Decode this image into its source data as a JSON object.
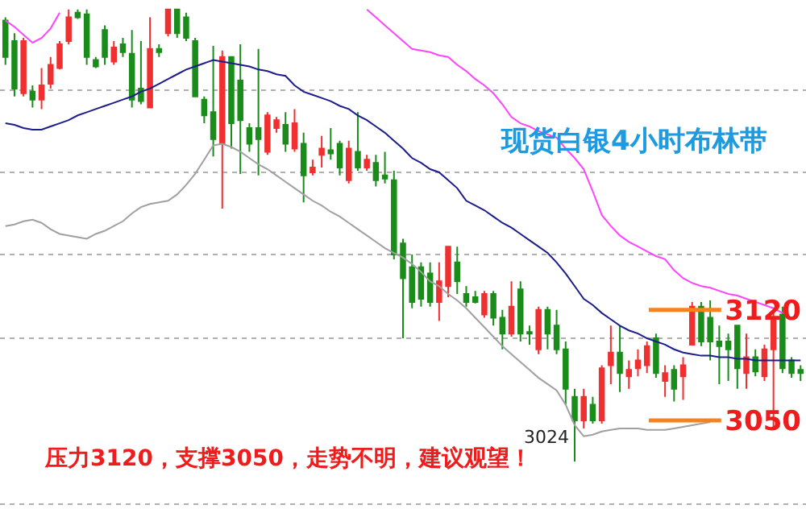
{
  "chart_data": {
    "type": "candlestick",
    "title": "现货白银4小时布林带",
    "categories": [
      null,
      null,
      null,
      null,
      null,
      null,
      null,
      null,
      null,
      null,
      null,
      null,
      null,
      null,
      null,
      null,
      null,
      null,
      null,
      null,
      null,
      null,
      null,
      null,
      null,
      null,
      null,
      null,
      null,
      null,
      null,
      null,
      null,
      null,
      null,
      null,
      null,
      null,
      null,
      null,
      null,
      null,
      null,
      null,
      null,
      null,
      null,
      null,
      null,
      null,
      null,
      null,
      null,
      null,
      null,
      null,
      null,
      null,
      null,
      null,
      null,
      null,
      null,
      null,
      null,
      null,
      null,
      null,
      null,
      null,
      null,
      null,
      null,
      null,
      null,
      null,
      null,
      null,
      null,
      null,
      null,
      null,
      null,
      null,
      null,
      null,
      null,
      null,
      null
    ],
    "ohlc": [
      [
        3303,
        3305,
        3275,
        3280
      ],
      [
        3290,
        3295,
        3255,
        3260
      ],
      [
        3257,
        3292,
        3255,
        3290
      ],
      [
        3258,
        3262,
        3248,
        3253
      ],
      [
        3253,
        3273,
        3247,
        3262
      ],
      [
        3263,
        3280,
        3260,
        3275
      ],
      [
        3273,
        3290,
        3272,
        3288
      ],
      [
        3290,
        3310,
        3288,
        3305
      ],
      [
        3308,
        3310,
        3304,
        3305
      ],
      [
        3307,
        3310,
        3275,
        3280
      ],
      [
        3278,
        3280,
        3273,
        3274
      ],
      [
        3297,
        3300,
        3275,
        3280
      ],
      [
        3277,
        3290,
        3275,
        3286
      ],
      [
        3288,
        3292,
        3280,
        3283
      ],
      [
        3282,
        3297,
        3248,
        3253
      ],
      [
        3260,
        3290,
        3250,
        3252
      ],
      [
        3248,
        3305,
        3248,
        3285
      ],
      [
        3285,
        3288,
        3280,
        3283
      ],
      [
        3295,
        3310,
        3293,
        3310
      ],
      [
        3310,
        3310,
        3292,
        3295
      ],
      [
        3305,
        3308,
        3290,
        3292
      ],
      [
        3290,
        3292,
        3255,
        3255
      ],
      [
        3253,
        3255,
        3238,
        3243
      ],
      [
        3245,
        3287,
        3217,
        3228
      ],
      [
        3225,
        3284,
        3184,
        3280
      ],
      [
        3280,
        3280,
        3222,
        3238
      ],
      [
        3265,
        3288,
        3206,
        3240
      ],
      [
        3235,
        3238,
        3220,
        3225
      ],
      [
        3235,
        3285,
        3205,
        3228
      ],
      [
        3220,
        3245,
        3218,
        3243
      ],
      [
        3235,
        3242,
        3232,
        3240
      ],
      [
        3237,
        3245,
        3220,
        3225
      ],
      [
        3222,
        3247,
        3220,
        3238
      ],
      [
        3225,
        3232,
        3188,
        3205
      ],
      [
        3207,
        3215,
        3205,
        3210
      ],
      [
        3218,
        3230,
        3210,
        3222
      ],
      [
        3221,
        3235,
        3215,
        3219
      ],
      [
        3225,
        3227,
        3205,
        3210
      ],
      [
        3202,
        3227,
        3200,
        3222
      ],
      [
        3220,
        3245,
        3208,
        3210
      ],
      [
        3210,
        3218,
        3208,
        3215
      ],
      [
        3213,
        3218,
        3198,
        3202
      ],
      [
        3205,
        3220,
        3200,
        3203
      ],
      [
        3202,
        3208,
        3152,
        3155
      ],
      [
        3162,
        3165,
        3102,
        3140
      ],
      [
        3147,
        3155,
        3121,
        3125
      ],
      [
        3147,
        3150,
        3122,
        3127
      ],
      [
        3143,
        3150,
        3122,
        3125
      ],
      [
        3125,
        3150,
        3113,
        3138
      ],
      [
        3135,
        3160,
        3128,
        3160
      ],
      [
        3150,
        3160,
        3130,
        3138
      ],
      [
        3130,
        3135,
        3122,
        3125
      ],
      [
        3128,
        3132,
        3124,
        3125
      ],
      [
        3117,
        3132,
        3115,
        3130
      ],
      [
        3130,
        3132,
        3110,
        3115
      ],
      [
        3115,
        3120,
        3095,
        3105
      ],
      [
        3105,
        3138,
        3103,
        3122
      ],
      [
        3133,
        3138,
        3100,
        3105
      ],
      [
        3106,
        3110,
        3098,
        3105
      ],
      [
        3095,
        3122,
        3092,
        3120
      ],
      [
        3120,
        3122,
        3095,
        3105
      ],
      [
        3110,
        3120,
        3092,
        3095
      ],
      [
        3095,
        3100,
        3060,
        3070
      ],
      [
        3065,
        3070,
        3024,
        3050
      ],
      [
        3050,
        3070,
        3045,
        3065
      ],
      [
        3060,
        3065,
        3048,
        3050
      ],
      [
        3050,
        3085,
        3048,
        3083
      ],
      [
        3085,
        3110,
        3073,
        3093
      ],
      [
        3093,
        3110,
        3068,
        3080
      ],
      [
        3078,
        3088,
        3070,
        3082
      ],
      [
        3083,
        3095,
        3078,
        3088
      ],
      [
        3085,
        3100,
        3080,
        3097
      ],
      [
        3102,
        3105,
        3077,
        3080
      ],
      [
        3075,
        3085,
        3065,
        3080
      ],
      [
        3082,
        3085,
        3062,
        3070
      ],
      [
        3078,
        3090,
        3063,
        3085
      ],
      [
        3098,
        3125,
        3098,
        3122
      ],
      [
        3122,
        3125,
        3097,
        3100
      ],
      [
        3115,
        3126,
        3088,
        3100
      ],
      [
        3100,
        3110,
        3073,
        3097
      ],
      [
        3100,
        3105,
        3075,
        3095
      ],
      [
        3110,
        3110,
        3070,
        3083
      ],
      [
        3080,
        3105,
        3070,
        3090
      ],
      [
        3090,
        3095,
        3078,
        3081
      ],
      [
        3078,
        3098,
        3075,
        3095
      ],
      [
        3095,
        3120,
        3044,
        3115
      ],
      [
        3117,
        3122,
        3080,
        3083
      ],
      [
        3088,
        3090,
        3077,
        3080
      ],
      [
        3082,
        3085,
        3075,
        3080
      ]
    ],
    "colors": [
      "#1a8c1a",
      "#1a8c1a",
      "#f03030",
      "#1a8c1a",
      "#f03030",
      "#f03030",
      "#f03030",
      "#f03030",
      "#1a8c1a",
      "#1a8c1a",
      "#1a8c1a",
      "#1a8c1a",
      "#f03030",
      "#1a8c1a",
      "#1a8c1a",
      "#1a8c1a",
      "#f03030",
      "#1a8c1a",
      "#f03030",
      "#1a8c1a",
      "#1a8c1a",
      "#1a8c1a",
      "#1a8c1a",
      "#1a8c1a",
      "#f03030",
      "#1a8c1a",
      "#1a8c1a",
      "#1a8c1a",
      "#1a8c1a",
      "#f03030",
      "#f03030",
      "#1a8c1a",
      "#f03030",
      "#1a8c1a",
      "#f03030",
      "#f03030",
      "#1a8c1a",
      "#1a8c1a",
      "#f03030",
      "#1a8c1a",
      "#f03030",
      "#1a8c1a",
      "#1a8c1a",
      "#1a8c1a",
      "#1a8c1a",
      "#1a8c1a",
      "#1a8c1a",
      "#1a8c1a",
      "#f03030",
      "#f03030",
      "#1a8c1a",
      "#1a8c1a",
      "#1a8c1a",
      "#f03030",
      "#1a8c1a",
      "#1a8c1a",
      "#f03030",
      "#1a8c1a",
      "#1a8c1a",
      "#f03030",
      "#1a8c1a",
      "#1a8c1a",
      "#1a8c1a",
      "#1a8c1a",
      "#f03030",
      "#1a8c1a",
      "#f03030",
      "#f03030",
      "#1a8c1a",
      "#f03030",
      "#f03030",
      "#f03030",
      "#1a8c1a",
      "#f03030",
      "#1a8c1a",
      "#f03030",
      "#f03030",
      "#1a8c1a",
      "#1a8c1a",
      "#1a8c1a",
      "#1a8c1a",
      "#1a8c1a",
      "#f03030",
      "#1a8c1a",
      "#f03030",
      "#f03030",
      "#1a8c1a",
      "#1a8c1a",
      "#1a8c1a"
    ],
    "series": [
      {
        "type": "line",
        "color": "#ff44ff",
        "values": [
          3303,
          3299,
          3294,
          3289,
          3292,
          3298,
          3308,
          null,
          null,
          null,
          null,
          null,
          null,
          null,
          null,
          null,
          null,
          null,
          null,
          null,
          null,
          null,
          null,
          null,
          null,
          null,
          null,
          null,
          null,
          null,
          null,
          null,
          null,
          null,
          null,
          null,
          null,
          null,
          null,
          null,
          3310,
          3305,
          3300,
          3295,
          3290,
          3285,
          3284,
          3283,
          3281,
          3280,
          3275,
          3271,
          3266,
          3262,
          3257,
          3250,
          3242,
          3238,
          3236,
          3233,
          3231,
          3229,
          3222,
          3216,
          3209,
          3195,
          3180,
          3173,
          3167,
          3163,
          3160,
          3157,
          3154,
          3152,
          3145,
          3140,
          3137,
          3135,
          3134,
          3132,
          3130,
          3129,
          3127,
          3125,
          3123,
          3121,
          3118,
          null,
          null
        ]
      },
      {
        "type": "line",
        "color": "#1c1c8c",
        "values": [
          3238,
          3237,
          3235,
          3234,
          3234,
          3236,
          3238,
          3240,
          3243,
          3245,
          3247,
          3249,
          3251,
          3253,
          3255,
          3258,
          3260,
          3263,
          3266,
          3269,
          3272,
          3274,
          3276,
          3278,
          3277,
          3276,
          3275,
          3274,
          3272,
          3271,
          3269,
          3268,
          3262,
          3258,
          3256,
          3254,
          3252,
          3249,
          3247,
          3243,
          3240,
          3236,
          3232,
          3227,
          3222,
          3216,
          3213,
          3209,
          3207,
          3202,
          3197,
          3189,
          3186,
          3183,
          3179,
          3175,
          3172,
          3168,
          3164,
          3160,
          3156,
          3150,
          3143,
          3135,
          3127,
          3123,
          3118,
          3114,
          3110,
          3107,
          3105,
          3102,
          3100,
          3098,
          3095,
          3093,
          3092,
          3091,
          3091,
          3090,
          3090,
          3089,
          3089,
          3088,
          3088,
          3088,
          3088,
          3088,
          3088
        ]
      },
      {
        "type": "line",
        "color": "#a0a0a0",
        "values": [
          3173,
          3174,
          3176,
          3177,
          3175,
          3171,
          3168,
          3167,
          3166,
          3165,
          3168,
          3170,
          3173,
          3176,
          3181,
          3185,
          3187,
          3188,
          3189,
          3193,
          3199,
          3206,
          3215,
          3224,
          3225,
          3223,
          3220,
          3216,
          3212,
          3209,
          3205,
          3201,
          3197,
          3193,
          3189,
          3186,
          3182,
          3179,
          3175,
          3171,
          3167,
          3163,
          3159,
          3156,
          3153,
          3149,
          3144,
          3138,
          3135,
          3130,
          3126,
          3121,
          3115,
          3109,
          3103,
          3097,
          3092,
          3087,
          3082,
          3077,
          3073,
          3069,
          3060,
          3047,
          3040,
          3041,
          3043,
          3044,
          3045,
          3045,
          3045,
          3044,
          3044,
          3044,
          3045,
          3046,
          3047,
          3048,
          3049,
          null,
          null,
          null,
          null,
          null,
          null,
          null,
          null,
          null,
          null
        ]
      }
    ],
    "ylim": [
      2994,
      3316
    ],
    "yticks": [
      {
        "value": 2997,
        "label": null
      },
      {
        "value": 3050,
        "label": "3050"
      },
      {
        "value": 3102,
        "label": null
      },
      {
        "value": 3120,
        "label": "3120"
      },
      {
        "value": 3155,
        "label": null
      },
      {
        "value": 3207,
        "label": null
      },
      {
        "value": 3259,
        "label": null
      }
    ],
    "tick_labels": "y",
    "grid": "y",
    "ref_lines": [
      {
        "axis": "y",
        "value": 3120,
        "color": "#f5821f"
      },
      {
        "axis": "y",
        "value": 3050,
        "color": "#f5821f"
      }
    ],
    "annotations": [
      "3024",
      "压力3120，支撑3050，走势不明，建议观望！"
    ]
  }
}
